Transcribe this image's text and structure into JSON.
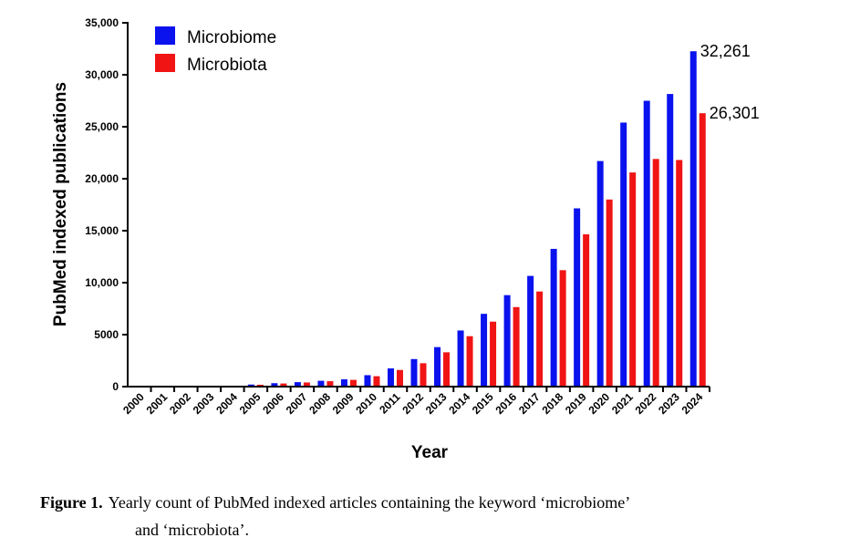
{
  "chart_data": {
    "type": "bar",
    "xlabel": "Year",
    "ylabel": "PubMed  indexed publications",
    "ylim": [
      0,
      35000
    ],
    "yticks": [
      0,
      5000,
      10000,
      15000,
      20000,
      25000,
      30000,
      35000
    ],
    "ytick_labels": [
      "0",
      "5000",
      "10,000",
      "15,000",
      "20,000",
      "25,000",
      "30,000",
      "35,000"
    ],
    "categories": [
      "2000",
      "2001",
      "2002",
      "2003",
      "2004",
      "2005",
      "2006",
      "2007",
      "2008",
      "2009",
      "2010",
      "2011",
      "2012",
      "2013",
      "2014",
      "2015",
      "2016",
      "2017",
      "2018",
      "2019",
      "2020",
      "2021",
      "2022",
      "2023",
      "2024"
    ],
    "series": [
      {
        "name": "Microbiome",
        "color": "#0a12ee",
        "values": [
          10,
          15,
          20,
          30,
          50,
          200,
          330,
          430,
          560,
          700,
          1100,
          1750,
          2650,
          3800,
          5400,
          7000,
          8800,
          10650,
          13250,
          17150,
          21700,
          25400,
          27500,
          28150,
          32261
        ]
      },
      {
        "name": "Microbiota",
        "color": "#f01414",
        "values": [
          10,
          15,
          20,
          30,
          50,
          180,
          300,
          400,
          520,
          650,
          1000,
          1600,
          2250,
          3300,
          4850,
          6250,
          7650,
          9150,
          11200,
          14650,
          18000,
          20600,
          21900,
          21800,
          26301
        ]
      }
    ],
    "annotations": [
      {
        "text": "32,261",
        "series": "Microbiome",
        "category": "2024"
      },
      {
        "text": "26,301",
        "series": "Microbiota",
        "category": "2024"
      }
    ],
    "legend": {
      "position": "top-left"
    },
    "grid": false
  },
  "caption": {
    "label": "Figure 1.",
    "line1": "Yearly count of PubMed indexed articles containing the keyword ‘microbiome’",
    "line2": "and ‘microbiota’."
  }
}
